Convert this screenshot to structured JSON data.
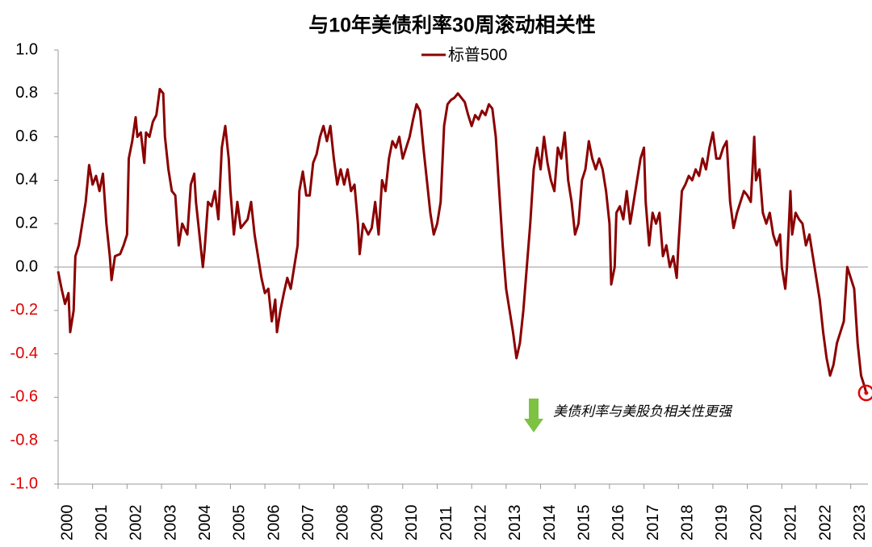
{
  "chart_data": {
    "type": "line",
    "title": "与10年美债利率30周滚动相关性",
    "annotation": "美债利率与美股负相关性更强",
    "annotation_arrow_color": "#7dc242",
    "negative_tick_color": "#e00000",
    "highlight_last_color": "#e00000",
    "xlim": [
      2000,
      2023.5
    ],
    "xticks": [
      2000,
      2001,
      2002,
      2003,
      2004,
      2005,
      2006,
      2007,
      2008,
      2009,
      2010,
      2011,
      2012,
      2013,
      2014,
      2015,
      2016,
      2017,
      2018,
      2019,
      2020,
      2021,
      2022,
      2023
    ],
    "ylim": [
      -1,
      1
    ],
    "yticks": [
      {
        "value": 1,
        "label": "1.0"
      },
      0.8,
      0.6,
      0.4,
      0.2,
      {
        "value": 0,
        "label": "0.0"
      },
      -0.2,
      -0.4,
      -0.6,
      -0.8,
      {
        "value": -1,
        "label": "-1.0"
      }
    ],
    "x": [
      2000.0,
      2000.1,
      2000.2,
      2000.3,
      2000.35,
      2000.45,
      2000.5,
      2000.6,
      2000.7,
      2000.8,
      2000.9,
      2001.0,
      2001.1,
      2001.2,
      2001.3,
      2001.4,
      2001.5,
      2001.55,
      2001.65,
      2001.8,
      2001.9,
      2002.0,
      2002.05,
      2002.15,
      2002.25,
      2002.3,
      2002.4,
      2002.5,
      2002.55,
      2002.65,
      2002.75,
      2002.85,
      2002.95,
      2003.05,
      2003.1,
      2003.2,
      2003.3,
      2003.4,
      2003.5,
      2003.6,
      2003.75,
      2003.85,
      2003.95,
      2004.0,
      2004.1,
      2004.2,
      2004.25,
      2004.35,
      2004.45,
      2004.55,
      2004.65,
      2004.75,
      2004.85,
      2004.95,
      2005.0,
      2005.1,
      2005.2,
      2005.3,
      2005.4,
      2005.5,
      2005.6,
      2005.7,
      2005.8,
      2005.9,
      2006.0,
      2006.1,
      2006.2,
      2006.3,
      2006.35,
      2006.45,
      2006.55,
      2006.65,
      2006.75,
      2006.85,
      2006.95,
      2007.0,
      2007.1,
      2007.2,
      2007.3,
      2007.4,
      2007.5,
      2007.6,
      2007.7,
      2007.8,
      2007.9,
      2008.0,
      2008.1,
      2008.2,
      2008.3,
      2008.4,
      2008.5,
      2008.6,
      2008.7,
      2008.75,
      2008.85,
      2009.0,
      2009.1,
      2009.2,
      2009.3,
      2009.4,
      2009.5,
      2009.6,
      2009.7,
      2009.8,
      2009.9,
      2010.0,
      2010.1,
      2010.2,
      2010.3,
      2010.4,
      2010.5,
      2010.6,
      2010.7,
      2010.8,
      2010.9,
      2011.0,
      2011.1,
      2011.2,
      2011.3,
      2011.4,
      2011.5,
      2011.6,
      2011.7,
      2011.8,
      2011.9,
      2012.0,
      2012.1,
      2012.2,
      2012.3,
      2012.4,
      2012.5,
      2012.6,
      2012.7,
      2012.8,
      2012.9,
      2013.0,
      2013.1,
      2013.2,
      2013.3,
      2013.4,
      2013.5,
      2013.6,
      2013.7,
      2013.8,
      2013.9,
      2014.0,
      2014.1,
      2014.2,
      2014.3,
      2014.4,
      2014.5,
      2014.6,
      2014.7,
      2014.8,
      2014.9,
      2015.0,
      2015.1,
      2015.2,
      2015.3,
      2015.4,
      2015.5,
      2015.6,
      2015.7,
      2015.8,
      2015.9,
      2016.0,
      2016.05,
      2016.15,
      2016.2,
      2016.3,
      2016.4,
      2016.5,
      2016.6,
      2016.7,
      2016.8,
      2016.9,
      2017.0,
      2017.05,
      2017.15,
      2017.25,
      2017.35,
      2017.45,
      2017.55,
      2017.65,
      2017.75,
      2017.85,
      2017.95,
      2018.0,
      2018.1,
      2018.2,
      2018.3,
      2018.4,
      2018.5,
      2018.6,
      2018.7,
      2018.8,
      2018.9,
      2019.0,
      2019.1,
      2019.2,
      2019.3,
      2019.4,
      2019.5,
      2019.6,
      2019.7,
      2019.8,
      2019.9,
      2020.0,
      2020.1,
      2020.2,
      2020.25,
      2020.35,
      2020.45,
      2020.55,
      2020.65,
      2020.75,
      2020.85,
      2020.95,
      2021.0,
      2021.1,
      2021.15,
      2021.25,
      2021.3,
      2021.4,
      2021.5,
      2021.6,
      2021.7,
      2021.8,
      2021.9,
      2022.0,
      2022.1,
      2022.2,
      2022.3,
      2022.4,
      2022.5,
      2022.6,
      2022.7,
      2022.8,
      2022.9,
      2023.0,
      2023.1,
      2023.2,
      2023.3,
      2023.4,
      2023.45
    ],
    "series": [
      {
        "name": "标普500",
        "color": "#8b0000",
        "values": [
          -0.02,
          -0.1,
          -0.17,
          -0.12,
          -0.3,
          -0.2,
          0.05,
          0.1,
          0.2,
          0.3,
          0.47,
          0.38,
          0.42,
          0.35,
          0.43,
          0.2,
          0.05,
          -0.06,
          0.05,
          0.06,
          0.1,
          0.15,
          0.5,
          0.58,
          0.69,
          0.6,
          0.62,
          0.48,
          0.62,
          0.6,
          0.67,
          0.7,
          0.82,
          0.8,
          0.6,
          0.45,
          0.35,
          0.33,
          0.1,
          0.2,
          0.15,
          0.38,
          0.43,
          0.3,
          0.15,
          0.0,
          0.08,
          0.3,
          0.28,
          0.35,
          0.22,
          0.55,
          0.65,
          0.5,
          0.35,
          0.15,
          0.3,
          0.18,
          0.2,
          0.22,
          0.3,
          0.15,
          0.05,
          -0.05,
          -0.12,
          -0.1,
          -0.25,
          -0.15,
          -0.3,
          -0.2,
          -0.12,
          -0.05,
          -0.1,
          0.0,
          0.1,
          0.35,
          0.44,
          0.33,
          0.33,
          0.48,
          0.52,
          0.6,
          0.65,
          0.58,
          0.65,
          0.5,
          0.38,
          0.45,
          0.38,
          0.45,
          0.35,
          0.38,
          0.2,
          0.06,
          0.2,
          0.15,
          0.18,
          0.3,
          0.15,
          0.4,
          0.35,
          0.5,
          0.58,
          0.55,
          0.6,
          0.5,
          0.55,
          0.6,
          0.68,
          0.75,
          0.72,
          0.55,
          0.4,
          0.25,
          0.15,
          0.2,
          0.3,
          0.65,
          0.75,
          0.77,
          0.78,
          0.8,
          0.78,
          0.76,
          0.7,
          0.65,
          0.7,
          0.68,
          0.72,
          0.7,
          0.75,
          0.73,
          0.6,
          0.35,
          0.1,
          -0.1,
          -0.2,
          -0.3,
          -0.42,
          -0.35,
          -0.2,
          0.0,
          0.2,
          0.45,
          0.55,
          0.45,
          0.6,
          0.48,
          0.4,
          0.35,
          0.55,
          0.5,
          0.62,
          0.4,
          0.3,
          0.15,
          0.2,
          0.4,
          0.45,
          0.58,
          0.5,
          0.45,
          0.5,
          0.45,
          0.35,
          0.2,
          -0.08,
          0.0,
          0.25,
          0.28,
          0.22,
          0.35,
          0.2,
          0.3,
          0.4,
          0.5,
          0.55,
          0.3,
          0.1,
          0.25,
          0.2,
          0.25,
          0.05,
          0.1,
          0.0,
          0.05,
          -0.05,
          0.1,
          0.35,
          0.38,
          0.42,
          0.4,
          0.45,
          0.42,
          0.5,
          0.45,
          0.55,
          0.62,
          0.5,
          0.5,
          0.55,
          0.58,
          0.3,
          0.18,
          0.25,
          0.3,
          0.35,
          0.33,
          0.3,
          0.6,
          0.4,
          0.45,
          0.25,
          0.2,
          0.25,
          0.15,
          0.1,
          0.15,
          0.0,
          -0.1,
          0.0,
          0.35,
          0.15,
          0.25,
          0.22,
          0.2,
          0.1,
          0.15,
          0.05,
          -0.05,
          -0.15,
          -0.3,
          -0.42,
          -0.5,
          -0.45,
          -0.35,
          -0.3,
          -0.25,
          0.0,
          -0.05,
          -0.1,
          -0.35,
          -0.5,
          -0.55,
          -0.58
        ]
      }
    ]
  }
}
